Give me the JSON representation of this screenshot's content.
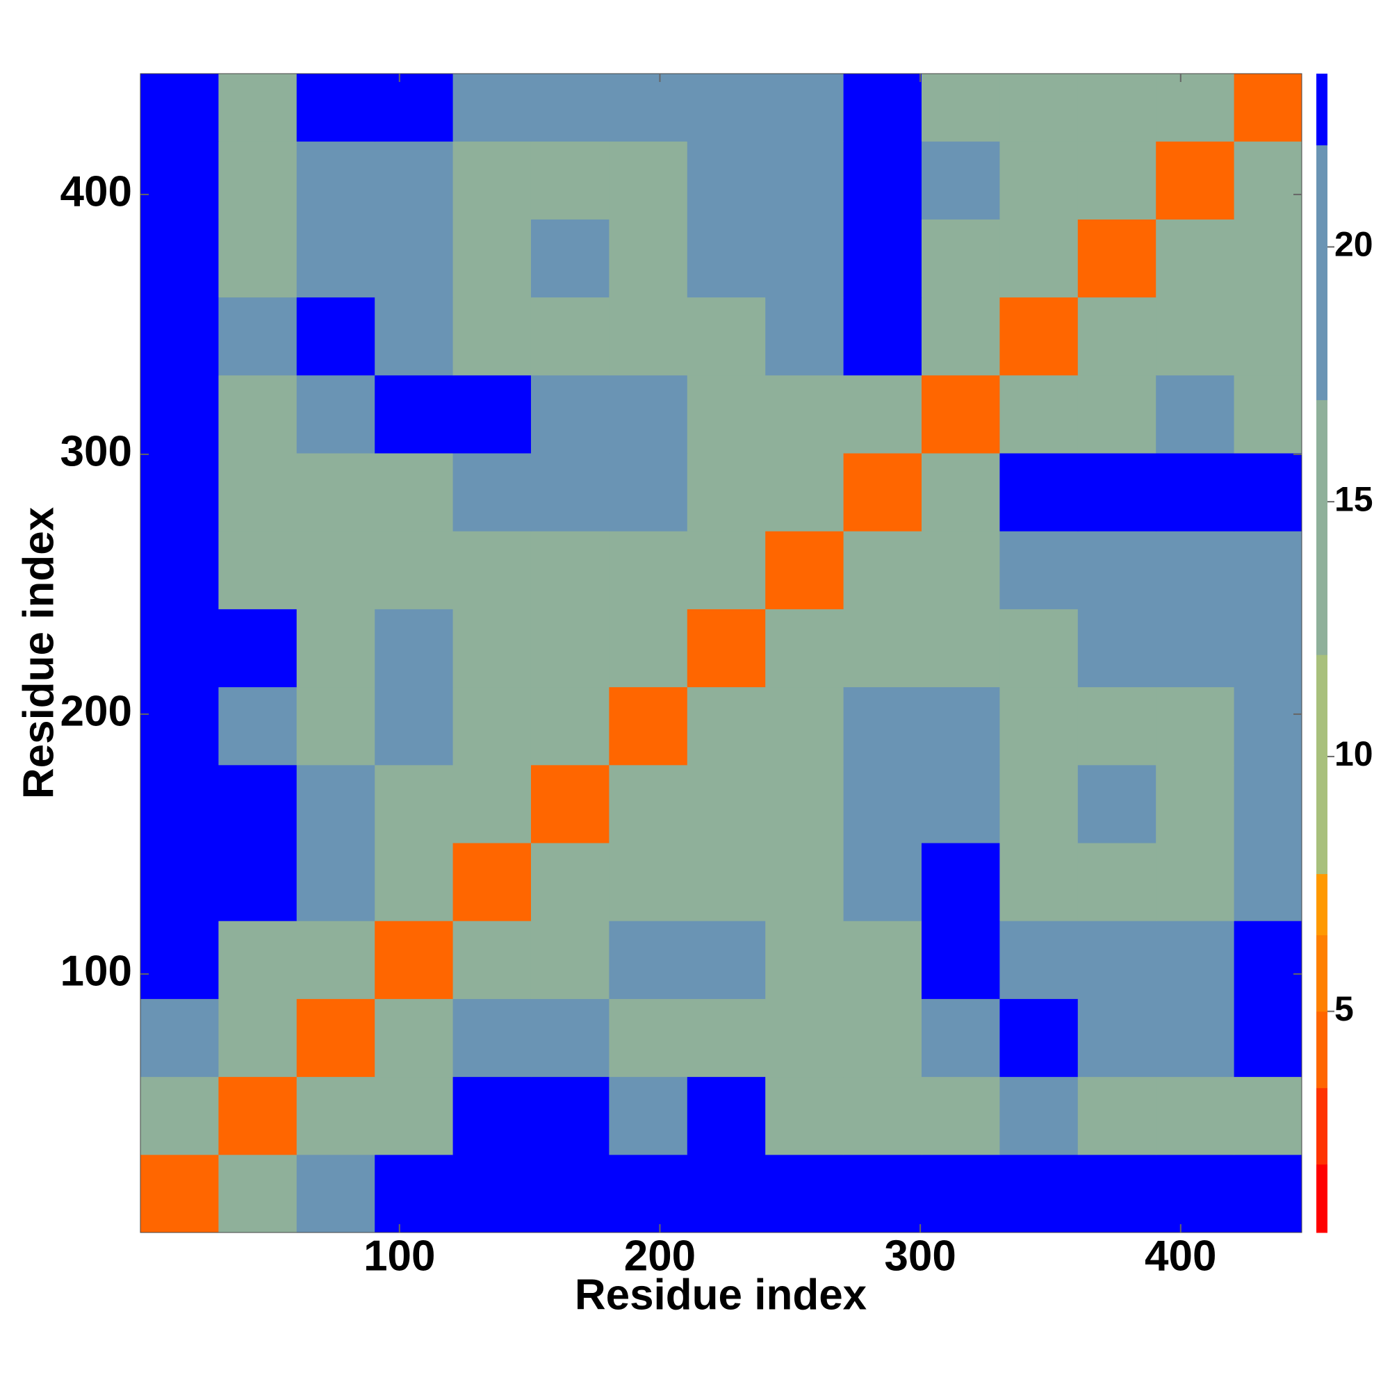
{
  "chart_data": {
    "type": "heatmap",
    "xlabel": "Residue index",
    "ylabel": "Residue index",
    "bins": [
      0.5,
      30.5,
      60.5,
      90.5,
      120.5,
      150.5,
      180.5,
      210.5,
      240.5,
      270.5,
      300.5,
      330.5,
      360.5,
      390.5,
      420.5,
      446.5
    ],
    "z": [
      [
        4,
        12,
        20,
        23,
        23,
        23,
        23,
        23,
        23,
        23,
        23,
        23,
        23,
        23,
        23
      ],
      [
        12,
        4,
        12,
        15,
        23,
        23,
        19,
        23,
        16,
        14,
        14,
        17,
        15,
        16,
        15
      ],
      [
        20,
        12,
        4,
        12,
        18,
        17,
        16,
        15,
        14,
        14,
        19,
        23,
        20,
        20,
        23
      ],
      [
        23,
        15,
        12,
        4,
        12,
        15,
        18,
        17,
        15,
        15,
        23,
        20,
        20,
        20,
        23
      ],
      [
        23,
        23,
        18,
        12,
        4,
        12,
        13,
        14,
        15,
        20,
        23,
        16,
        16,
        16,
        20
      ],
      [
        23,
        23,
        17,
        15,
        12,
        4,
        12,
        13,
        14,
        19,
        20,
        16,
        17,
        16,
        20
      ],
      [
        23,
        19,
        16,
        18,
        13,
        12,
        4,
        12,
        14,
        19,
        20,
        16,
        16,
        16,
        19
      ],
      [
        23,
        23,
        15,
        17,
        14,
        13,
        12,
        4,
        12,
        15,
        16,
        16,
        17,
        17,
        19
      ],
      [
        23,
        16,
        14,
        15,
        15,
        14,
        14,
        12,
        4,
        12,
        15,
        17,
        17,
        18,
        20
      ],
      [
        23,
        14,
        14,
        15,
        20,
        19,
        19,
        15,
        12,
        4,
        12,
        23,
        23,
        23,
        23
      ],
      [
        23,
        14,
        19,
        23,
        23,
        20,
        20,
        16,
        15,
        12,
        4,
        12,
        14,
        17,
        16
      ],
      [
        23,
        17,
        23,
        20,
        16,
        16,
        16,
        16,
        17,
        23,
        12,
        4,
        12,
        13,
        14
      ],
      [
        23,
        15,
        20,
        20,
        16,
        17,
        16,
        17,
        17,
        23,
        14,
        12,
        4,
        12,
        13
      ],
      [
        23,
        16,
        20,
        20,
        16,
        16,
        16,
        17,
        18,
        23,
        17,
        13,
        12,
        4,
        12
      ],
      [
        23,
        15,
        23,
        23,
        20,
        20,
        19,
        19,
        20,
        23,
        16,
        14,
        13,
        12,
        4
      ]
    ],
    "xlim": [
      0.5,
      446.5
    ],
    "ylim": [
      0.5,
      446.5
    ],
    "xticks": [
      100,
      200,
      300,
      400
    ],
    "yticks": [
      100,
      200,
      300,
      400
    ],
    "colorbar": {
      "levels": [
        0.66,
        2,
        3.5,
        5,
        6.5,
        7.7,
        12,
        17,
        22,
        23.4
      ],
      "colors": [
        "#ff0000",
        "#ff3300",
        "#ff6600",
        "#ff8000",
        "#ff9900",
        "#a8c07c",
        "#8fb09a",
        "#6a94b4",
        "#0000ff"
      ],
      "ticks": [
        5,
        10,
        15,
        20
      ]
    }
  }
}
